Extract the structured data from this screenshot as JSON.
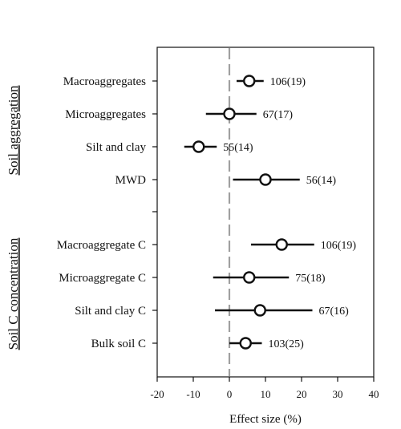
{
  "chart_data": {
    "type": "forest",
    "xlabel": "Effect size (%)",
    "xlim": [
      -20,
      40
    ],
    "xticks": [
      -20,
      -10,
      0,
      10,
      20,
      30,
      40
    ],
    "reference_line": 0,
    "groups": [
      {
        "title": "Soil aggregation",
        "items": [
          {
            "label": "Macroaggregates",
            "estimate": 5.5,
            "ci_low": 2,
            "ci_high": 9.5,
            "n_label": "106(19)"
          },
          {
            "label": "Microaggregates",
            "estimate": 0,
            "ci_low": -6.5,
            "ci_high": 7.5,
            "n_label": "67(17)"
          },
          {
            "label": "Silt and clay",
            "estimate": -8.5,
            "ci_low": -12.5,
            "ci_high": -3.5,
            "n_label": "55(14)"
          },
          {
            "label": "MWD",
            "estimate": 10,
            "ci_low": 1,
            "ci_high": 19.5,
            "n_label": "56(14)"
          }
        ]
      },
      {
        "title": "Soil C concentration",
        "items": [
          {
            "label": "Macroaggregate C",
            "estimate": 14.5,
            "ci_low": 6,
            "ci_high": 23.5,
            "n_label": "106(19)"
          },
          {
            "label": "Microaggregate C",
            "estimate": 5.5,
            "ci_low": -4.5,
            "ci_high": 16.5,
            "n_label": "75(18)"
          },
          {
            "label": "Silt and clay C",
            "estimate": 8.5,
            "ci_low": -4,
            "ci_high": 23,
            "n_label": "67(16)"
          },
          {
            "label": "Bulk soil C",
            "estimate": 4.5,
            "ci_low": 0,
            "ci_high": 9,
            "n_label": "103(25)"
          }
        ]
      }
    ]
  }
}
